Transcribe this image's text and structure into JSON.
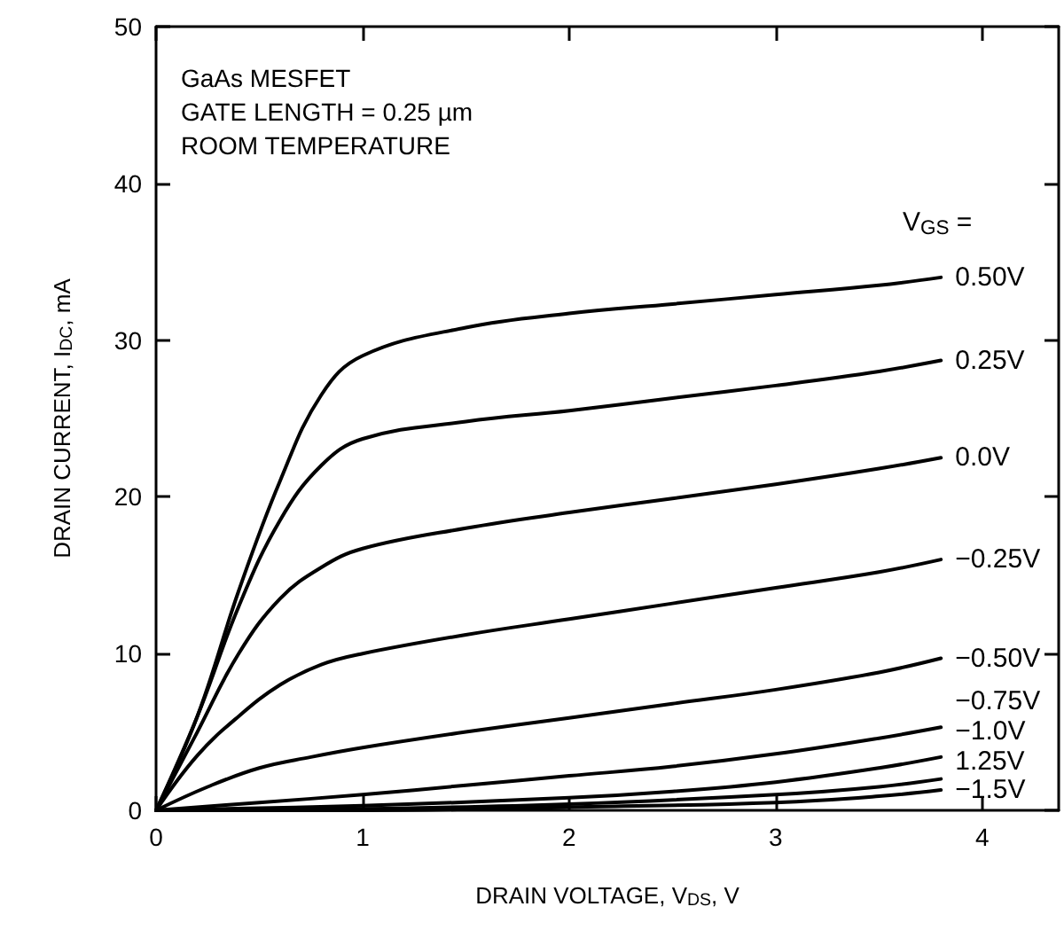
{
  "chart_data": {
    "type": "line",
    "xlabel": "DRAIN VOLTAGE, V$_{DS}$, V",
    "ylabel": "DRAIN CURRENT, I$_{DC}$, mA",
    "legend_title": "V$_{GS}$ =",
    "annotations": [
      "GaAs MESFET",
      "GATE LENGTH = 0.25 µm",
      "ROOM TEMPERATURE"
    ],
    "xlim": [
      0,
      4.37
    ],
    "xticks": [
      0,
      1,
      2,
      3,
      4
    ],
    "ylim": [
      0,
      50
    ],
    "yticks": [
      0,
      10,
      20,
      30,
      40,
      50
    ],
    "grid": false,
    "marker": "none",
    "line_style": "solid",
    "series": [
      {
        "name": "0.50V",
        "color": "#000000",
        "x": [
          0,
          0.2,
          0.4,
          0.6,
          0.8,
          1,
          1.5,
          2,
          2.5,
          3,
          3.5,
          3.8
        ],
        "values": [
          0,
          6,
          14,
          21,
          26.5,
          29,
          30.8,
          31.7,
          32.3,
          32.9,
          33.5,
          34
        ]
      },
      {
        "name": "0.25V",
        "color": "#000000",
        "x": [
          0,
          0.2,
          0.4,
          0.6,
          0.8,
          1,
          1.5,
          2,
          2.5,
          3,
          3.5,
          3.8
        ],
        "values": [
          0,
          6,
          13,
          18.5,
          22,
          23.7,
          24.8,
          25.5,
          26.3,
          27.1,
          28,
          28.7
        ]
      },
      {
        "name": "0.0V",
        "color": "#000000",
        "x": [
          0,
          0.2,
          0.4,
          0.6,
          0.8,
          1,
          1.5,
          2,
          2.5,
          3,
          3.5,
          3.8
        ],
        "values": [
          0,
          5,
          10,
          13.5,
          15.5,
          16.7,
          18,
          19,
          19.9,
          20.8,
          21.8,
          22.5
        ]
      },
      {
        "name": "−0.25V",
        "color": "#000000",
        "x": [
          0,
          0.2,
          0.4,
          0.6,
          0.8,
          1,
          1.5,
          2,
          2.5,
          3,
          3.5,
          3.8
        ],
        "values": [
          0,
          3.5,
          6,
          8,
          9.3,
          10,
          11.2,
          12.2,
          13.2,
          14.2,
          15.2,
          16
        ]
      },
      {
        "name": "−0.50V",
        "color": "#000000",
        "x": [
          0,
          0.25,
          0.5,
          0.75,
          1,
          1.5,
          2,
          2.5,
          3,
          3.5,
          3.8
        ],
        "values": [
          0,
          1.5,
          2.7,
          3.4,
          4,
          5,
          5.9,
          6.8,
          7.7,
          8.8,
          9.7
        ]
      },
      {
        "name": "−0.75V",
        "color": "#000000",
        "x": [
          0,
          0.5,
          1,
          1.5,
          2,
          2.5,
          3,
          3.5,
          3.8
        ],
        "values": [
          0,
          0.5,
          1,
          1.6,
          2.2,
          2.8,
          3.6,
          4.6,
          5.3
        ]
      },
      {
        "name": "−1.0V",
        "color": "#000000",
        "x": [
          0,
          1,
          2,
          2.5,
          3,
          3.5,
          3.8
        ],
        "values": [
          0,
          0.3,
          0.8,
          1.2,
          1.8,
          2.7,
          3.4
        ]
      },
      {
        "name": "1.25V",
        "color": "#000000",
        "x": [
          0,
          1,
          2,
          3,
          3.5,
          3.8
        ],
        "values": [
          0,
          0.1,
          0.4,
          1,
          1.5,
          2
        ]
      },
      {
        "name": "−1.5V",
        "color": "#000000",
        "x": [
          0,
          1,
          2,
          3,
          3.5,
          3.8
        ],
        "values": [
          0,
          0,
          0.2,
          0.5,
          0.9,
          1.3
        ]
      }
    ]
  }
}
